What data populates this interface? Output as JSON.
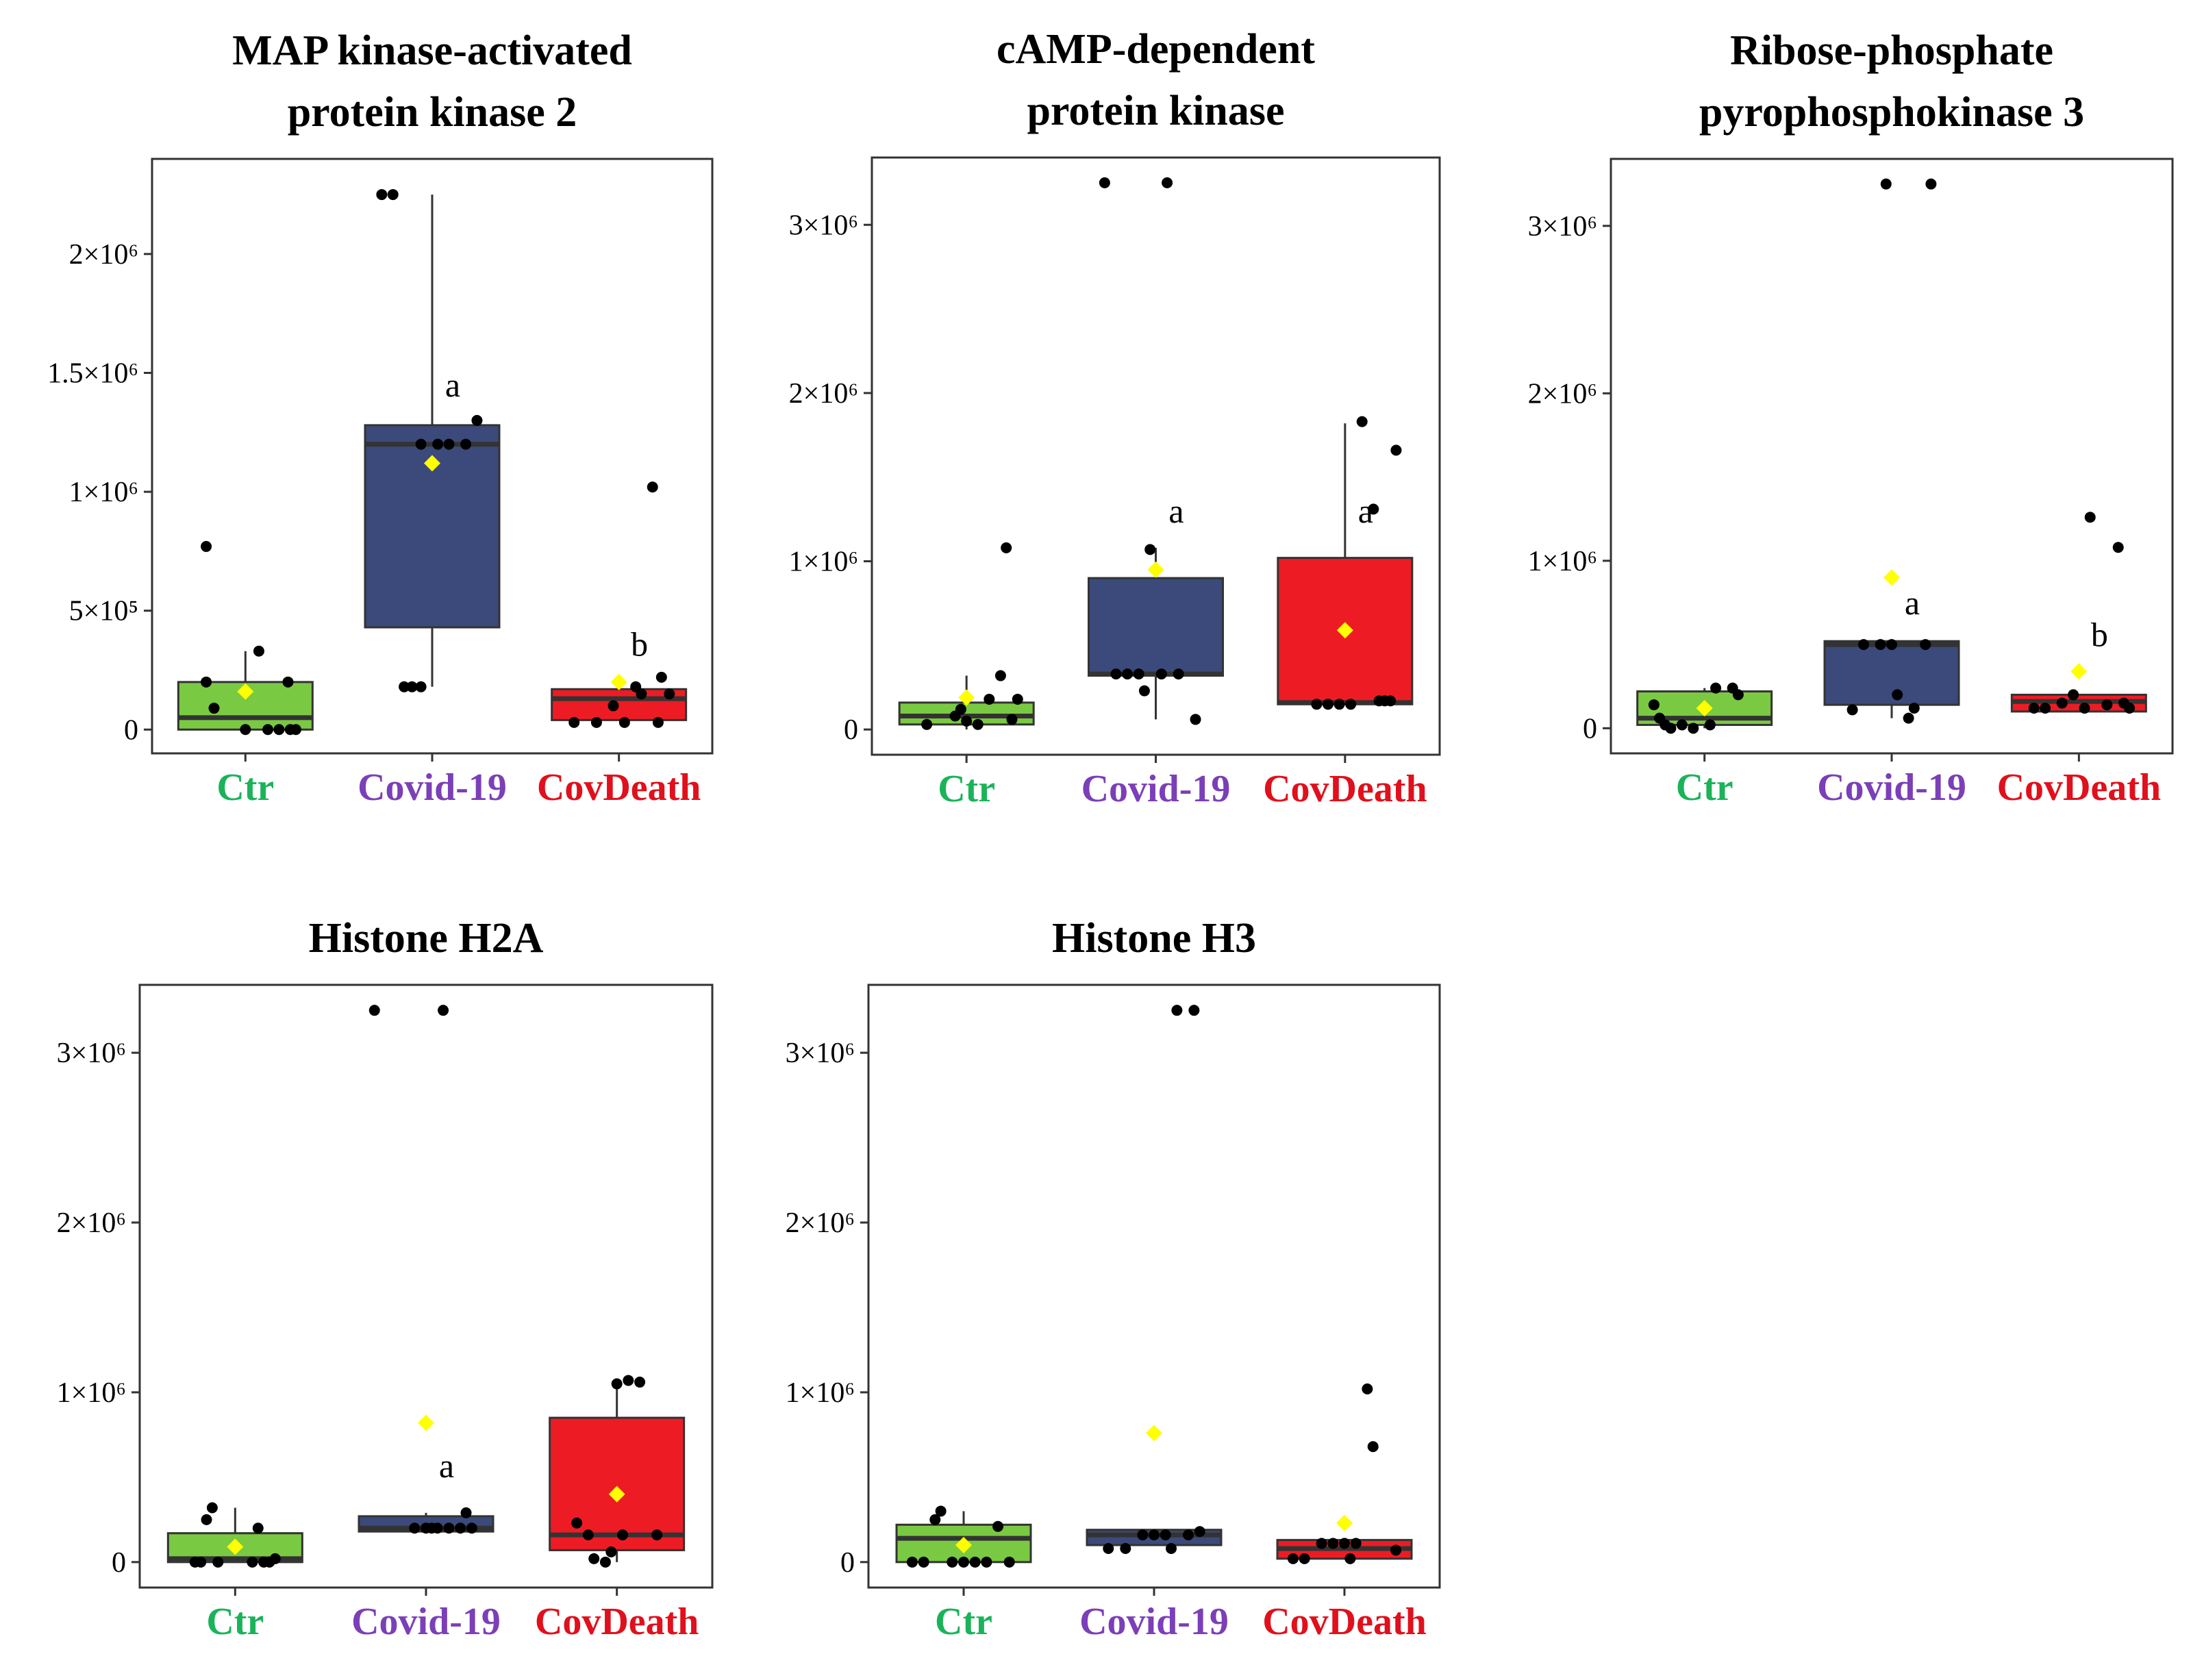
{
  "colors": {
    "Ctr": "#7ac943",
    "Covid-19": "#3b4a7a",
    "CovDeath": "#ed1c24",
    "Ctr_label": "#1bb35a",
    "Covid-19_label": "#7b3fb8",
    "CovDeath_label": "#e0101c",
    "mean_marker": "#ffff00",
    "points": "#000000"
  },
  "chart_data": [
    {
      "type": "box",
      "title": [
        "MAP kinase-activated",
        "protein kinase 2"
      ],
      "categories": [
        "Ctr",
        "Covid-19",
        "CovDeath"
      ],
      "ylim": [
        -100000,
        2400000
      ],
      "yticks": [
        {
          "value": 0,
          "label": "0"
        },
        {
          "value": 500000,
          "label": "5×10⁵"
        },
        {
          "value": 1000000,
          "label": "1×10⁶"
        },
        {
          "value": 1500000,
          "label": "1.5×10⁶"
        },
        {
          "value": 2000000,
          "label": "2×10⁶"
        }
      ],
      "boxes": [
        {
          "q1": 0,
          "median": 50000,
          "q3": 200000,
          "whisker_low": 0,
          "whisker_high": 330000,
          "mean": 160000,
          "points": [
            [
              -0.35,
              770000
            ],
            [
              -0.35,
              200000
            ],
            [
              -0.28,
              90000
            ],
            [
              0,
              0
            ],
            [
              0.12,
              330000
            ],
            [
              0.2,
              0
            ],
            [
              0.3,
              0
            ],
            [
              0.38,
              200000
            ],
            [
              0.4,
              0
            ],
            [
              0.45,
              0
            ]
          ]
        },
        {
          "q1": 430000,
          "median": 1200000,
          "q3": 1280000,
          "whisker_low": 180000,
          "whisker_high": 2250000,
          "mean": 1120000,
          "points": [
            [
              -0.45,
              2250000
            ],
            [
              -0.35,
              2250000
            ],
            [
              -0.25,
              180000
            ],
            [
              -0.18,
              180000
            ],
            [
              -0.1,
              180000
            ],
            [
              -0.1,
              1200000
            ],
            [
              0.05,
              1200000
            ],
            [
              0.15,
              1200000
            ],
            [
              0.3,
              1200000
            ],
            [
              0.4,
              1300000
            ]
          ]
        },
        {
          "q1": 40000,
          "median": 130000,
          "q3": 170000,
          "whisker_low": 40000,
          "whisker_high": 170000,
          "mean": 200000,
          "points": [
            [
              -0.4,
              30000
            ],
            [
              -0.2,
              30000
            ],
            [
              -0.05,
              100000
            ],
            [
              0.05,
              30000
            ],
            [
              0.15,
              180000
            ],
            [
              0.2,
              150000
            ],
            [
              0.35,
              30000
            ],
            [
              0.3,
              1020000
            ],
            [
              0.38,
              220000
            ],
            [
              0.45,
              150000
            ]
          ]
        }
      ],
      "annotations": [
        {
          "category": "Covid-19",
          "text": "a",
          "y": 1400000
        },
        {
          "category": "CovDeath",
          "text": "b",
          "y": 310000
        }
      ]
    },
    {
      "type": "box",
      "title": [
        "cAMP-dependent",
        "protein kinase"
      ],
      "categories": [
        "Ctr",
        "Covid-19",
        "CovDeath"
      ],
      "ylim": [
        -150000,
        3400000
      ],
      "yticks": [
        {
          "value": 0,
          "label": "0"
        },
        {
          "value": 1000000,
          "label": "1×10⁶"
        },
        {
          "value": 2000000,
          "label": "2×10⁶"
        },
        {
          "value": 3000000,
          "label": "3×10⁶"
        }
      ],
      "boxes": [
        {
          "q1": 30000,
          "median": 80000,
          "q3": 160000,
          "whisker_low": 0,
          "whisker_high": 320000,
          "mean": 190000,
          "points": [
            [
              -0.35,
              30000
            ],
            [
              -0.1,
              80000
            ],
            [
              0,
              50000
            ],
            [
              0.1,
              30000
            ],
            [
              0.2,
              180000
            ],
            [
              0.3,
              320000
            ],
            [
              0.35,
              1080000
            ],
            [
              0.4,
              60000
            ],
            [
              0.45,
              180000
            ],
            [
              -0.05,
              120000
            ]
          ]
        },
        {
          "q1": 320000,
          "median": 330000,
          "q3": 900000,
          "whisker_low": 60000,
          "whisker_high": 1080000,
          "mean": 950000,
          "points": [
            [
              -0.45,
              3250000
            ],
            [
              -0.35,
              330000
            ],
            [
              -0.25,
              330000
            ],
            [
              -0.15,
              330000
            ],
            [
              -0.1,
              230000
            ],
            [
              -0.05,
              1070000
            ],
            [
              0.05,
              330000
            ],
            [
              0.1,
              3250000
            ],
            [
              0.2,
              330000
            ],
            [
              0.35,
              60000
            ]
          ]
        },
        {
          "q1": 150000,
          "median": 160000,
          "q3": 1020000,
          "whisker_low": 150000,
          "whisker_high": 1820000,
          "mean": 590000,
          "points": [
            [
              -0.25,
              150000
            ],
            [
              -0.15,
              150000
            ],
            [
              -0.05,
              150000
            ],
            [
              0.05,
              150000
            ],
            [
              0.15,
              1830000
            ],
            [
              0.25,
              1310000
            ],
            [
              0.3,
              170000
            ],
            [
              0.35,
              170000
            ],
            [
              0.4,
              170000
            ],
            [
              0.45,
              1660000
            ]
          ]
        }
      ],
      "annotations": [
        {
          "category": "Covid-19",
          "text": "a",
          "y": 1230000
        },
        {
          "category": "CovDeath",
          "text": "a",
          "y": 1230000
        }
      ]
    },
    {
      "type": "box",
      "title": [
        "Ribose-phosphate",
        "pyrophosphokinase  3"
      ],
      "categories": [
        "Ctr",
        "Covid-19",
        "CovDeath"
      ],
      "ylim": [
        -150000,
        3400000
      ],
      "yticks": [
        {
          "value": 0,
          "label": "0"
        },
        {
          "value": 1000000,
          "label": "1×10⁶"
        },
        {
          "value": 2000000,
          "label": "2×10⁶"
        },
        {
          "value": 3000000,
          "label": "3×10⁶"
        }
      ],
      "boxes": [
        {
          "q1": 20000,
          "median": 60000,
          "q3": 220000,
          "whisker_low": 0,
          "whisker_high": 240000,
          "mean": 120000,
          "points": [
            [
              -0.45,
              140000
            ],
            [
              -0.4,
              60000
            ],
            [
              -0.35,
              20000
            ],
            [
              -0.3,
              0
            ],
            [
              -0.2,
              20000
            ],
            [
              -0.1,
              0
            ],
            [
              0.05,
              20000
            ],
            [
              0.1,
              240000
            ],
            [
              0.25,
              240000
            ],
            [
              0.3,
              200000
            ]
          ]
        },
        {
          "q1": 140000,
          "median": 500000,
          "q3": 520000,
          "whisker_low": 60000,
          "whisker_high": 520000,
          "mean": 900000,
          "points": [
            [
              -0.35,
              110000
            ],
            [
              -0.25,
              500000
            ],
            [
              -0.1,
              500000
            ],
            [
              0,
              500000
            ],
            [
              0.05,
              200000
            ],
            [
              0.15,
              60000
            ],
            [
              0.3,
              500000
            ],
            [
              0.35,
              3250000
            ],
            [
              -0.05,
              3250000
            ],
            [
              0.2,
              120000
            ]
          ]
        },
        {
          "q1": 100000,
          "median": 160000,
          "q3": 200000,
          "whisker_low": 100000,
          "whisker_high": 200000,
          "mean": 340000,
          "points": [
            [
              -0.4,
              120000
            ],
            [
              -0.3,
              120000
            ],
            [
              -0.15,
              150000
            ],
            [
              -0.05,
              200000
            ],
            [
              0.05,
              120000
            ],
            [
              0.1,
              1260000
            ],
            [
              0.35,
              1080000
            ],
            [
              0.45,
              120000
            ],
            [
              0.25,
              140000
            ],
            [
              0.4,
              150000
            ]
          ]
        }
      ],
      "annotations": [
        {
          "category": "Covid-19",
          "text": "a",
          "y": 680000
        },
        {
          "category": "CovDeath",
          "text": "b",
          "y": 490000
        }
      ]
    },
    {
      "type": "box",
      "title": [
        "Histone H2A"
      ],
      "categories": [
        "Ctr",
        "Covid-19",
        "CovDeath"
      ],
      "ylim": [
        -150000,
        3400000
      ],
      "yticks": [
        {
          "value": 0,
          "label": "0"
        },
        {
          "value": 1000000,
          "label": "1×10⁶"
        },
        {
          "value": 2000000,
          "label": "2×10⁶"
        },
        {
          "value": 3000000,
          "label": "3×10⁶"
        }
      ],
      "boxes": [
        {
          "q1": 0,
          "median": 20000,
          "q3": 170000,
          "whisker_low": 0,
          "whisker_high": 320000,
          "mean": 90000,
          "points": [
            [
              -0.35,
              0
            ],
            [
              -0.3,
              0
            ],
            [
              -0.25,
              250000
            ],
            [
              -0.2,
              320000
            ],
            [
              -0.15,
              0
            ],
            [
              0.15,
              0
            ],
            [
              0.2,
              200000
            ],
            [
              0.25,
              0
            ],
            [
              0.3,
              0
            ],
            [
              0.35,
              20000
            ]
          ]
        },
        {
          "q1": 180000,
          "median": 200000,
          "q3": 270000,
          "whisker_low": 180000,
          "whisker_high": 290000,
          "mean": 820000,
          "points": [
            [
              -0.45,
              3250000
            ],
            [
              0.15,
              3250000
            ],
            [
              0,
              200000
            ],
            [
              0.05,
              200000
            ],
            [
              0.1,
              200000
            ],
            [
              0.2,
              200000
            ],
            [
              0.3,
              200000
            ],
            [
              0.35,
              290000
            ],
            [
              0.4,
              200000
            ],
            [
              -0.1,
              200000
            ]
          ]
        },
        {
          "q1": 70000,
          "median": 160000,
          "q3": 850000,
          "whisker_low": 0,
          "whisker_high": 1060000,
          "mean": 400000,
          "points": [
            [
              -0.35,
              230000
            ],
            [
              -0.2,
              20000
            ],
            [
              -0.1,
              0
            ],
            [
              -0.05,
              60000
            ],
            [
              0,
              1050000
            ],
            [
              0.1,
              1070000
            ],
            [
              0.2,
              1060000
            ],
            [
              0.35,
              160000
            ],
            [
              -0.25,
              160000
            ],
            [
              0.05,
              160000
            ]
          ]
        }
      ],
      "annotations": [
        {
          "category": "Covid-19",
          "text": "a",
          "y": 500000
        }
      ]
    },
    {
      "type": "box",
      "title": [
        "Histone H3"
      ],
      "categories": [
        "Ctr",
        "Covid-19",
        "CovDeath"
      ],
      "ylim": [
        -150000,
        3400000
      ],
      "yticks": [
        {
          "value": 0,
          "label": "0"
        },
        {
          "value": 1000000,
          "label": "1×10⁶"
        },
        {
          "value": 2000000,
          "label": "2×10⁶"
        },
        {
          "value": 3000000,
          "label": "3×10⁶"
        }
      ],
      "boxes": [
        {
          "q1": 0,
          "median": 140000,
          "q3": 220000,
          "whisker_low": 0,
          "whisker_high": 300000,
          "mean": 100000,
          "points": [
            [
              -0.45,
              0
            ],
            [
              -0.35,
              0
            ],
            [
              -0.25,
              250000
            ],
            [
              -0.2,
              300000
            ],
            [
              -0.1,
              0
            ],
            [
              0,
              0
            ],
            [
              0.1,
              0
            ],
            [
              0.2,
              0
            ],
            [
              0.3,
              210000
            ],
            [
              0.4,
              0
            ]
          ]
        },
        {
          "q1": 100000,
          "median": 160000,
          "q3": 190000,
          "whisker_low": 100000,
          "whisker_high": 190000,
          "mean": 760000,
          "points": [
            [
              -0.4,
              80000
            ],
            [
              -0.25,
              80000
            ],
            [
              -0.1,
              160000
            ],
            [
              0,
              160000
            ],
            [
              0.1,
              160000
            ],
            [
              0.15,
              80000
            ],
            [
              0.2,
              3250000
            ],
            [
              0.35,
              3250000
            ],
            [
              0.4,
              180000
            ],
            [
              0.3,
              160000
            ]
          ]
        },
        {
          "q1": 20000,
          "median": 80000,
          "q3": 130000,
          "whisker_low": 20000,
          "whisker_high": 130000,
          "mean": 230000,
          "points": [
            [
              -0.45,
              20000
            ],
            [
              -0.35,
              20000
            ],
            [
              -0.2,
              110000
            ],
            [
              -0.1,
              110000
            ],
            [
              0,
              110000
            ],
            [
              0.05,
              20000
            ],
            [
              0.1,
              110000
            ],
            [
              0.2,
              1020000
            ],
            [
              0.25,
              680000
            ],
            [
              0.45,
              70000
            ]
          ]
        }
      ],
      "annotations": []
    }
  ]
}
